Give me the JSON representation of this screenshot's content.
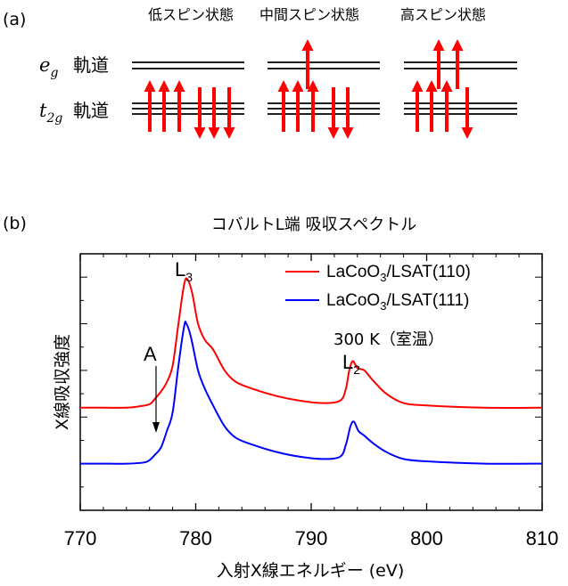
{
  "panel_a": {
    "label": "(a)",
    "states": [
      "低スピン状態",
      "中間スピン状態",
      "高スピン状態"
    ],
    "eg": {
      "symbol": "e",
      "sub": "g",
      "label": "軌道"
    },
    "t2g": {
      "symbol": "t",
      "sub": "2g",
      "label": "軌道"
    },
    "spin_config": [
      {
        "state": "低スピン状態",
        "eg_up": 0,
        "eg_down": 0,
        "t2g_up": 3,
        "t2g_down": 3
      },
      {
        "state": "中間スピン状態",
        "eg_up": 1,
        "eg_down": 0,
        "t2g_up": 3,
        "t2g_down": 2
      },
      {
        "state": "高スピン状態",
        "eg_up": 2,
        "eg_down": 0,
        "t2g_up": 3,
        "t2g_down": 1
      }
    ],
    "arrow_color": "#ff0000"
  },
  "panel_b": {
    "label": "(b)",
    "title": "コバルトL端 吸収スペクトル",
    "xlabel": "入射X線エネルギー (eV)",
    "ylabel": "X線吸収強度",
    "peaks": {
      "L3": {
        "main": "L",
        "sub": "3"
      },
      "L2": {
        "main": "L",
        "sub": "2"
      },
      "A": "A"
    },
    "temperature": "300 K（室温）",
    "legend": [
      {
        "main": "LaCoO",
        "sub": "3",
        "rest": "/LSAT(110)",
        "color": "#ff0000"
      },
      {
        "main": "LaCoO",
        "sub": "3",
        "rest": "/LSAT(111)",
        "color": "#0000ff"
      }
    ]
  },
  "chart_data": {
    "type": "line",
    "title": "コバルトL端 吸収スペクトル",
    "xlabel": "入射X線エネルギー (eV)",
    "ylabel": "X線吸収強度",
    "xlim": [
      770,
      810
    ],
    "x_ticks": [
      770,
      780,
      790,
      800,
      810
    ],
    "ylim": [
      0,
      1.1
    ],
    "series": [
      {
        "name": "LaCoO3/LSAT(110)",
        "color": "#ff0000",
        "points": [
          [
            770,
            0.44
          ],
          [
            772,
            0.44
          ],
          [
            774,
            0.44
          ],
          [
            775,
            0.445
          ],
          [
            776,
            0.455
          ],
          [
            776.5,
            0.48
          ],
          [
            777,
            0.51
          ],
          [
            777.5,
            0.55
          ],
          [
            778,
            0.62
          ],
          [
            778.5,
            0.8
          ],
          [
            779,
            0.97
          ],
          [
            779.3,
            0.99
          ],
          [
            779.7,
            0.93
          ],
          [
            780.2,
            0.8
          ],
          [
            780.8,
            0.73
          ],
          [
            781.5,
            0.69
          ],
          [
            782.5,
            0.6
          ],
          [
            783.5,
            0.55
          ],
          [
            785,
            0.52
          ],
          [
            787,
            0.49
          ],
          [
            789,
            0.47
          ],
          [
            791,
            0.46
          ],
          [
            792.5,
            0.47
          ],
          [
            793,
            0.52
          ],
          [
            793.3,
            0.6
          ],
          [
            793.6,
            0.64
          ],
          [
            794,
            0.61
          ],
          [
            794.6,
            0.6
          ],
          [
            795.3,
            0.56
          ],
          [
            796.5,
            0.5
          ],
          [
            798,
            0.46
          ],
          [
            800,
            0.45
          ],
          [
            805,
            0.44
          ],
          [
            810,
            0.44
          ]
        ]
      },
      {
        "name": "LaCoO3/LSAT(111)",
        "color": "#0000ff",
        "points": [
          [
            770,
            0.2
          ],
          [
            772,
            0.2
          ],
          [
            774,
            0.2
          ],
          [
            775.5,
            0.205
          ],
          [
            776,
            0.215
          ],
          [
            776.5,
            0.24
          ],
          [
            777,
            0.27
          ],
          [
            777.5,
            0.34
          ],
          [
            778,
            0.42
          ],
          [
            778.5,
            0.62
          ],
          [
            779,
            0.79
          ],
          [
            779.2,
            0.8
          ],
          [
            779.6,
            0.74
          ],
          [
            780.2,
            0.6
          ],
          [
            780.8,
            0.52
          ],
          [
            781.5,
            0.45
          ],
          [
            782.5,
            0.36
          ],
          [
            783.5,
            0.31
          ],
          [
            785,
            0.28
          ],
          [
            787,
            0.25
          ],
          [
            789,
            0.23
          ],
          [
            791,
            0.22
          ],
          [
            792.5,
            0.23
          ],
          [
            793,
            0.28
          ],
          [
            793.4,
            0.36
          ],
          [
            793.7,
            0.38
          ],
          [
            794.1,
            0.34
          ],
          [
            794.6,
            0.32
          ],
          [
            795.3,
            0.29
          ],
          [
            796.5,
            0.25
          ],
          [
            798,
            0.22
          ],
          [
            800,
            0.21
          ],
          [
            805,
            0.2
          ],
          [
            810,
            0.2
          ]
        ]
      }
    ]
  }
}
